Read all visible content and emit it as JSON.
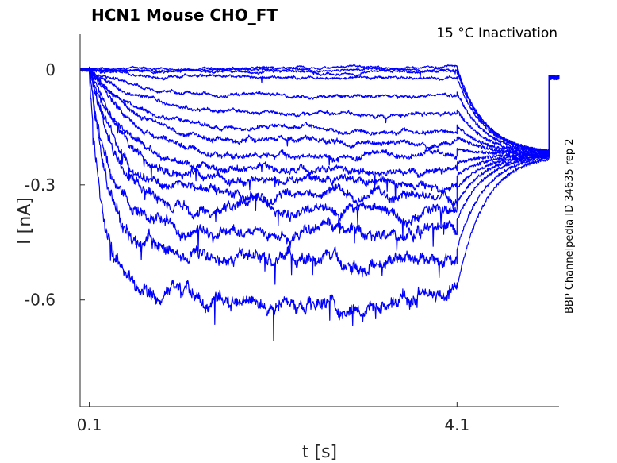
{
  "chart_data": {
    "type": "line",
    "title": "HCN1  Mouse  CHO_FT",
    "annotation": "15 °C  Inactivation",
    "side_label": "BBP Channelpedia ID 34635 rep 2",
    "xlabel": "t [s]",
    "ylabel": "I [nA]",
    "xlim": [
      0.0,
      5.21
    ],
    "ylim": [
      -0.878,
      0.093
    ],
    "xticks": [
      {
        "value": 0.1,
        "label": "0.1"
      },
      {
        "value": 4.1,
        "label": "4.1"
      }
    ],
    "yticks": [
      {
        "value": 0,
        "label": "0"
      },
      {
        "value": -0.3,
        "label": "-0.3"
      },
      {
        "value": -0.6,
        "label": "-0.6"
      }
    ],
    "grid": false,
    "line_color": "#0000ff",
    "step_start_s": 0.1,
    "step_end_s": 4.1,
    "trace_end_s": 5.1,
    "tail_level_nA": -0.22,
    "sweeps_steady_state_nA": [
      0.006,
      0.0,
      -0.005,
      -0.021,
      -0.072,
      -0.118,
      -0.161,
      -0.19,
      -0.224,
      -0.261,
      -0.294,
      -0.329,
      -0.367,
      -0.414,
      -0.491,
      -0.594
    ]
  }
}
